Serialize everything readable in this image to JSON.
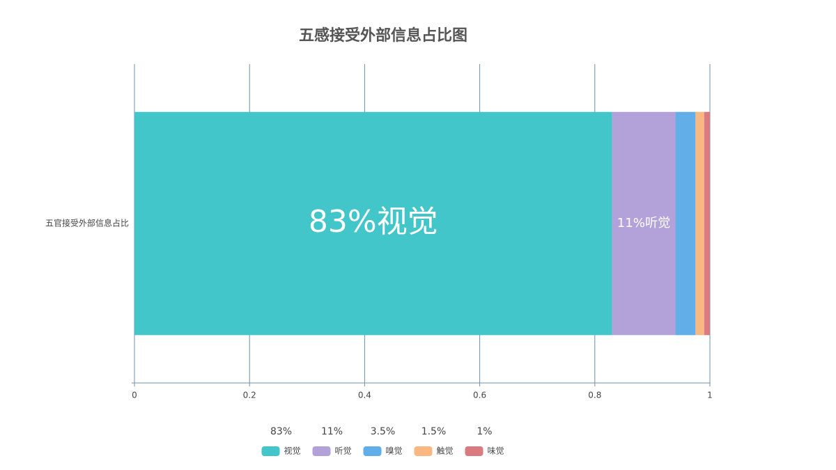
{
  "chart_data": {
    "type": "stacked-bar-horizontal",
    "title": "五感接受外部信息占比图",
    "categories": [
      "五官接受外部信息占比"
    ],
    "series": [
      {
        "name": "视觉",
        "color": "#42c6c9",
        "values": [
          0.83
        ],
        "value_labels": [
          "83%视觉"
        ],
        "legend_value_label": "83%"
      },
      {
        "name": "听觉",
        "color": "#b3a1d9",
        "values": [
          0.11
        ],
        "value_labels": [
          "11%听觉"
        ],
        "legend_value_label": "11%"
      },
      {
        "name": "嗅觉",
        "color": "#62aee8",
        "values": [
          0.035
        ],
        "legend_value_label": "3.5%"
      },
      {
        "name": "触觉",
        "color": "#f9b882",
        "values": [
          0.015
        ],
        "legend_value_label": "1.5%"
      },
      {
        "name": "味觉",
        "color": "#d97b80",
        "values": [
          0.01
        ],
        "legend_value_label": "1%"
      }
    ],
    "xlim": [
      0,
      1
    ],
    "xticks": [
      0,
      0.2,
      0.4,
      0.6,
      0.8,
      1
    ],
    "grid": true
  }
}
